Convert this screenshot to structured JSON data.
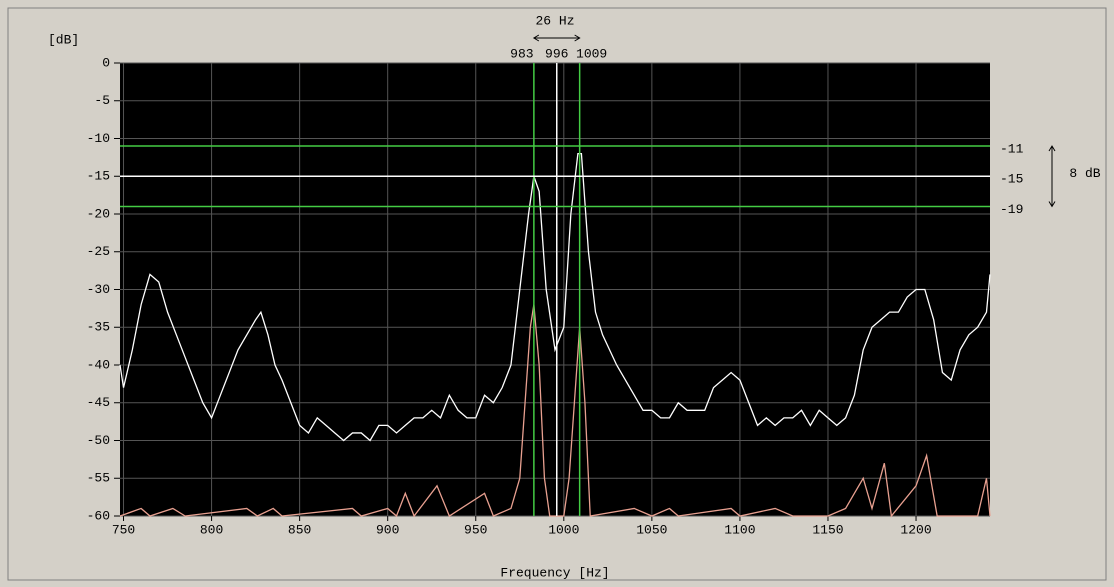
{
  "chart_data": {
    "type": "line",
    "y_label": "[dB]",
    "x_label": "Frequency [Hz]",
    "xlim": [
      748,
      1242
    ],
    "ylim": [
      -60,
      0
    ],
    "xticks": [
      750,
      800,
      850,
      900,
      950,
      1000,
      1050,
      1100,
      1150,
      1200
    ],
    "yticks": [
      0,
      -5,
      -10,
      -15,
      -20,
      -25,
      -30,
      -35,
      -40,
      -45,
      -50,
      -55,
      -60
    ],
    "grid": true,
    "series": [
      {
        "color": "#ffffff",
        "x": [
          748,
          750,
          755,
          760,
          765,
          770,
          775,
          780,
          785,
          790,
          795,
          800,
          805,
          810,
          815,
          820,
          825,
          828,
          832,
          836,
          840,
          845,
          850,
          855,
          860,
          865,
          870,
          875,
          880,
          885,
          890,
          895,
          900,
          905,
          910,
          915,
          920,
          925,
          930,
          935,
          940,
          945,
          950,
          955,
          960,
          965,
          970,
          975,
          980,
          983,
          986,
          990,
          995,
          1000,
          1004,
          1008,
          1010,
          1014,
          1018,
          1022,
          1026,
          1030,
          1035,
          1040,
          1045,
          1050,
          1055,
          1060,
          1065,
          1070,
          1075,
          1080,
          1085,
          1090,
          1095,
          1100,
          1105,
          1110,
          1115,
          1120,
          1125,
          1130,
          1135,
          1140,
          1145,
          1150,
          1155,
          1160,
          1165,
          1170,
          1175,
          1180,
          1185,
          1190,
          1195,
          1200,
          1205,
          1210,
          1215,
          1220,
          1225,
          1230,
          1235,
          1240,
          1242
        ],
        "values": [
          -40,
          -43,
          -38,
          -32,
          -28,
          -29,
          -33,
          -36,
          -39,
          -42,
          -45,
          -47,
          -44,
          -41,
          -38,
          -36,
          -34,
          -33,
          -36,
          -40,
          -42,
          -45,
          -48,
          -49,
          -47,
          -48,
          -49,
          -50,
          -49,
          -49,
          -50,
          -48,
          -48,
          -49,
          -48,
          -47,
          -47,
          -46,
          -47,
          -44,
          -46,
          -47,
          -47,
          -44,
          -45,
          -43,
          -40,
          -30,
          -20,
          -15,
          -17,
          -30,
          -38,
          -35,
          -20,
          -12,
          -12,
          -25,
          -33,
          -36,
          -38,
          -40,
          -42,
          -44,
          -46,
          -46,
          -47,
          -47,
          -45,
          -46,
          -46,
          -46,
          -43,
          -42,
          -41,
          -42,
          -45,
          -48,
          -47,
          -48,
          -47,
          -47,
          -46,
          -48,
          -46,
          -47,
          -48,
          -47,
          -44,
          -38,
          -35,
          -34,
          -33,
          -33,
          -31,
          -30,
          -30,
          -34,
          -41,
          -42,
          -38,
          -36,
          -35,
          -33,
          -28
        ]
      },
      {
        "color": "#e8a090",
        "x": [
          748,
          760,
          765,
          778,
          785,
          820,
          826,
          835,
          840,
          880,
          885,
          900,
          905,
          910,
          915,
          928,
          935,
          955,
          960,
          970,
          975,
          978,
          981,
          983,
          986,
          989,
          992,
          1000,
          1003,
          1006,
          1009,
          1012,
          1015,
          1040,
          1050,
          1060,
          1065,
          1095,
          1100,
          1120,
          1130,
          1150,
          1160,
          1165,
          1170,
          1175,
          1182,
          1186,
          1200,
          1206,
          1212,
          1225,
          1235,
          1240,
          1242
        ],
        "values": [
          -60,
          -59,
          -60,
          -59,
          -60,
          -59,
          -60,
          -59,
          -60,
          -59,
          -60,
          -59,
          -60,
          -57,
          -60,
          -56,
          -60,
          -57,
          -60,
          -59,
          -55,
          -45,
          -35,
          -32,
          -40,
          -55,
          -60,
          -60,
          -55,
          -45,
          -35,
          -45,
          -60,
          -59,
          -60,
          -59,
          -60,
          -59,
          -60,
          -59,
          -60,
          -60,
          -59,
          -57,
          -55,
          -59,
          -53,
          -60,
          -56,
          -52,
          -60,
          -60,
          -60,
          -55,
          -60
        ]
      }
    ],
    "markers": {
      "x": [
        983,
        996,
        1009
      ],
      "x_colors": [
        "#44cc44",
        "#ffffff",
        "#44cc44"
      ],
      "y": [
        -11,
        -15,
        -19
      ],
      "y_colors": [
        "#44cc44",
        "#ffffff",
        "#44cc44"
      ]
    },
    "annotations": [
      "26 Hz",
      "8 dB"
    ]
  }
}
